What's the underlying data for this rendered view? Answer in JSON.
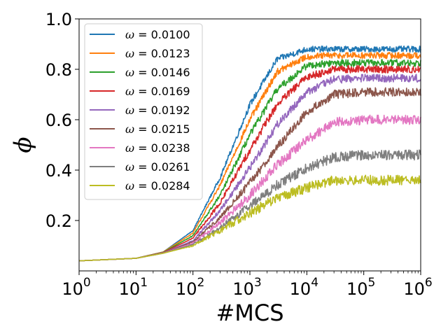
{
  "chart_data": {
    "type": "line",
    "title": "",
    "xlabel": "#MCS",
    "ylabel": "ϕ",
    "xscale": "log",
    "xlim": [
      1,
      1000000
    ],
    "ylim": [
      0,
      1.0
    ],
    "x_ticks": [
      {
        "value": 1,
        "base": "10",
        "exp": "0"
      },
      {
        "value": 10,
        "base": "10",
        "exp": "1"
      },
      {
        "value": 100,
        "base": "10",
        "exp": "2"
      },
      {
        "value": 1000,
        "base": "10",
        "exp": "3"
      },
      {
        "value": 10000,
        "base": "10",
        "exp": "4"
      },
      {
        "value": 100000,
        "base": "10",
        "exp": "5"
      },
      {
        "value": 1000000,
        "base": "10",
        "exp": "6"
      }
    ],
    "y_ticks": [
      {
        "value": 0.2,
        "label": "0.2"
      },
      {
        "value": 0.4,
        "label": "0.4"
      },
      {
        "value": 0.6,
        "label": "0.6"
      },
      {
        "value": 0.8,
        "label": "0.8"
      },
      {
        "value": 1.0,
        "label": "1.0"
      }
    ],
    "grid": false,
    "legend_position": "top-left",
    "x": [
      1,
      10,
      30,
      100,
      300,
      1000,
      3000,
      10000,
      30000,
      100000,
      1000000
    ],
    "series": [
      {
        "name": "ω = 0.0100",
        "symbol": "ω",
        "value": "0.0100",
        "color": "#1f77b4",
        "noise": 0.012,
        "values": [
          0.04,
          0.05,
          0.075,
          0.16,
          0.37,
          0.66,
          0.84,
          0.88,
          0.88,
          0.88,
          0.88
        ]
      },
      {
        "name": "ω = 0.0123",
        "symbol": "ω",
        "value": "0.0123",
        "color": "#ff7f0e",
        "noise": 0.013,
        "values": [
          0.04,
          0.05,
          0.075,
          0.15,
          0.34,
          0.6,
          0.79,
          0.85,
          0.855,
          0.855,
          0.855
        ]
      },
      {
        "name": "ω = 0.0146",
        "symbol": "ω",
        "value": "0.0146",
        "color": "#2ca02c",
        "noise": 0.014,
        "values": [
          0.04,
          0.05,
          0.074,
          0.14,
          0.3,
          0.54,
          0.72,
          0.815,
          0.825,
          0.825,
          0.825
        ]
      },
      {
        "name": "ω = 0.0169",
        "symbol": "ω",
        "value": "0.0169",
        "color": "#d62728",
        "noise": 0.015,
        "values": [
          0.04,
          0.05,
          0.073,
          0.13,
          0.27,
          0.48,
          0.66,
          0.77,
          0.8,
          0.8,
          0.8
        ]
      },
      {
        "name": "ω = 0.0192",
        "symbol": "ω",
        "value": "0.0192",
        "color": "#9467bd",
        "noise": 0.016,
        "values": [
          0.04,
          0.05,
          0.072,
          0.12,
          0.24,
          0.41,
          0.58,
          0.71,
          0.76,
          0.765,
          0.765
        ]
      },
      {
        "name": "ω = 0.0215",
        "symbol": "ω",
        "value": "0.0215",
        "color": "#8c564b",
        "noise": 0.017,
        "values": [
          0.04,
          0.05,
          0.071,
          0.115,
          0.21,
          0.35,
          0.49,
          0.63,
          0.7,
          0.71,
          0.71
        ]
      },
      {
        "name": "ω = 0.0238",
        "symbol": "ω",
        "value": "0.0238",
        "color": "#e377c2",
        "noise": 0.019,
        "values": [
          0.04,
          0.05,
          0.07,
          0.11,
          0.19,
          0.3,
          0.42,
          0.52,
          0.59,
          0.6,
          0.6
        ]
      },
      {
        "name": "ω = 0.0261",
        "symbol": "ω",
        "value": "0.0261",
        "color": "#7f7f7f",
        "noise": 0.02,
        "values": [
          0.04,
          0.05,
          0.07,
          0.105,
          0.17,
          0.26,
          0.34,
          0.41,
          0.45,
          0.46,
          0.46
        ]
      },
      {
        "name": "ω = 0.0284",
        "symbol": "ω",
        "value": "0.0284",
        "color": "#bcbd22",
        "noise": 0.02,
        "values": [
          0.04,
          0.05,
          0.07,
          0.1,
          0.16,
          0.23,
          0.29,
          0.33,
          0.36,
          0.36,
          0.36
        ]
      }
    ]
  }
}
